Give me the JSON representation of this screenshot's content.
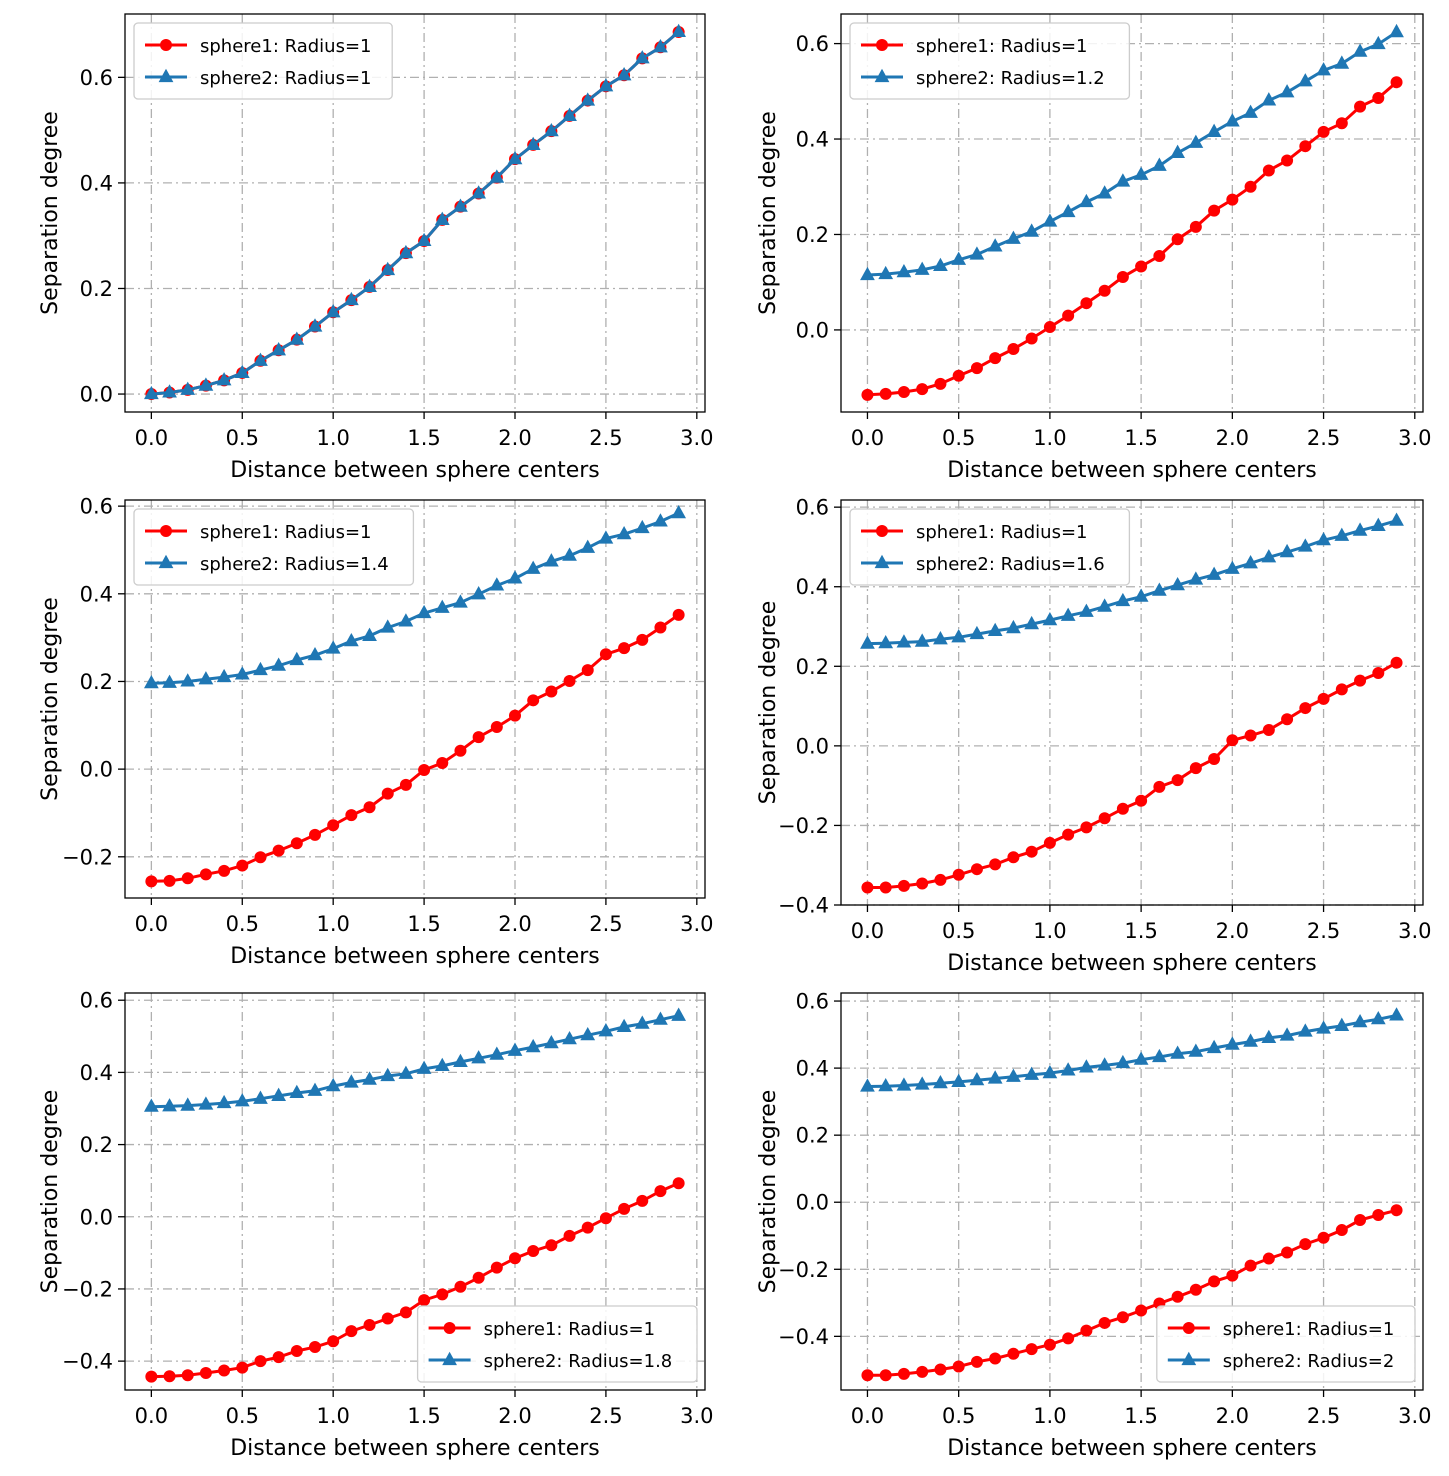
{
  "figure": {
    "background": "#ffffff"
  },
  "colors": {
    "sphere1": "#ff0000",
    "sphere2": "#1f77b4",
    "grid": "#b0b0b0",
    "legend_edge": "#cccccc"
  },
  "chart_data": [
    {
      "type": "line",
      "xlabel": "Distance between sphere centers",
      "ylabel": "Separation degree",
      "xlim": [
        -0.145,
        3.045
      ],
      "ylim": [
        -0.034,
        0.72
      ],
      "xticks": [
        "0.0",
        "0.5",
        "1.0",
        "1.5",
        "2.0",
        "2.5",
        "3.0"
      ],
      "yticks": [
        "0.0",
        "0.2",
        "0.4",
        "0.6"
      ],
      "legend_loc": "upper-left",
      "x": [
        0.0,
        0.1,
        0.2,
        0.3,
        0.4,
        0.5,
        0.6,
        0.7,
        0.8,
        0.9,
        1.0,
        1.1,
        1.2,
        1.3,
        1.4,
        1.5,
        1.6,
        1.7,
        1.8,
        1.9,
        2.0,
        2.1,
        2.2,
        2.3,
        2.4,
        2.5,
        2.6,
        2.7,
        2.8,
        2.9
      ],
      "series": [
        {
          "name": "sphere1: Radius=1",
          "marker": "circle",
          "values": [
            0.0,
            0.003,
            0.008,
            0.016,
            0.026,
            0.04,
            0.063,
            0.083,
            0.103,
            0.128,
            0.155,
            0.178,
            0.203,
            0.235,
            0.267,
            0.29,
            0.33,
            0.355,
            0.38,
            0.41,
            0.445,
            0.472,
            0.498,
            0.527,
            0.556,
            0.583,
            0.604,
            0.636,
            0.657,
            0.686
          ]
        },
        {
          "name": "sphere2: Radius=1",
          "marker": "triangle",
          "values": [
            0.0,
            0.003,
            0.008,
            0.016,
            0.026,
            0.04,
            0.063,
            0.083,
            0.103,
            0.128,
            0.155,
            0.178,
            0.203,
            0.235,
            0.267,
            0.29,
            0.33,
            0.355,
            0.38,
            0.41,
            0.445,
            0.472,
            0.498,
            0.527,
            0.556,
            0.583,
            0.604,
            0.636,
            0.657,
            0.686
          ]
        }
      ]
    },
    {
      "type": "line",
      "xlabel": "Distance between sphere centers",
      "ylabel": "Separation degree",
      "xlim": [
        -0.145,
        3.045
      ],
      "ylim": [
        -0.172,
        0.662
      ],
      "xticks": [
        "0.0",
        "0.5",
        "1.0",
        "1.5",
        "2.0",
        "2.5",
        "3.0"
      ],
      "yticks": [
        "0.0",
        "0.2",
        "0.4",
        "0.6"
      ],
      "legend_loc": "upper-left",
      "x": [
        0.0,
        0.1,
        0.2,
        0.3,
        0.4,
        0.5,
        0.6,
        0.7,
        0.8,
        0.9,
        1.0,
        1.1,
        1.2,
        1.3,
        1.4,
        1.5,
        1.6,
        1.7,
        1.8,
        1.9,
        2.0,
        2.1,
        2.2,
        2.3,
        2.4,
        2.5,
        2.6,
        2.7,
        2.8,
        2.9
      ],
      "series": [
        {
          "name": "sphere1: Radius=1",
          "marker": "circle",
          "values": [
            -0.136,
            -0.134,
            -0.13,
            -0.124,
            -0.113,
            -0.096,
            -0.08,
            -0.059,
            -0.04,
            -0.018,
            0.006,
            0.03,
            0.056,
            0.082,
            0.111,
            0.133,
            0.155,
            0.19,
            0.216,
            0.25,
            0.273,
            0.3,
            0.334,
            0.355,
            0.385,
            0.415,
            0.433,
            0.468,
            0.486,
            0.519
          ]
        },
        {
          "name": "sphere2: Radius=1.2",
          "marker": "triangle",
          "values": [
            0.115,
            0.117,
            0.121,
            0.126,
            0.134,
            0.147,
            0.158,
            0.175,
            0.191,
            0.206,
            0.227,
            0.247,
            0.268,
            0.286,
            0.311,
            0.325,
            0.344,
            0.371,
            0.392,
            0.415,
            0.437,
            0.455,
            0.481,
            0.498,
            0.521,
            0.544,
            0.558,
            0.583,
            0.599,
            0.624
          ]
        }
      ]
    },
    {
      "type": "line",
      "xlabel": "Distance between sphere centers",
      "ylabel": "Separation degree",
      "xlim": [
        -0.145,
        3.045
      ],
      "ylim": [
        -0.294,
        0.614
      ],
      "xticks": [
        "0.0",
        "0.5",
        "1.0",
        "1.5",
        "2.0",
        "2.5",
        "3.0"
      ],
      "yticks": [
        "−0.2",
        "0.0",
        "0.2",
        "0.4",
        "0.6"
      ],
      "legend_loc": "upper-left",
      "x": [
        0.0,
        0.1,
        0.2,
        0.3,
        0.4,
        0.5,
        0.6,
        0.7,
        0.8,
        0.9,
        1.0,
        1.1,
        1.2,
        1.3,
        1.4,
        1.5,
        1.6,
        1.7,
        1.8,
        1.9,
        2.0,
        2.1,
        2.2,
        2.3,
        2.4,
        2.5,
        2.6,
        2.7,
        2.8,
        2.9
      ],
      "series": [
        {
          "name": "sphere1: Radius=1",
          "marker": "circle",
          "values": [
            -0.256,
            -0.255,
            -0.249,
            -0.24,
            -0.232,
            -0.22,
            -0.201,
            -0.186,
            -0.169,
            -0.15,
            -0.128,
            -0.105,
            -0.087,
            -0.056,
            -0.036,
            -0.002,
            0.014,
            0.042,
            0.073,
            0.096,
            0.122,
            0.157,
            0.177,
            0.201,
            0.226,
            0.262,
            0.276,
            0.295,
            0.323,
            0.352
          ]
        },
        {
          "name": "sphere2: Radius=1.4",
          "marker": "triangle",
          "values": [
            0.196,
            0.197,
            0.2,
            0.205,
            0.21,
            0.216,
            0.226,
            0.236,
            0.249,
            0.26,
            0.275,
            0.292,
            0.304,
            0.323,
            0.337,
            0.356,
            0.368,
            0.38,
            0.399,
            0.419,
            0.435,
            0.457,
            0.474,
            0.487,
            0.505,
            0.526,
            0.536,
            0.55,
            0.565,
            0.584
          ]
        }
      ]
    },
    {
      "type": "line",
      "xlabel": "Distance between sphere centers",
      "ylabel": "Separation degree",
      "xlim": [
        -0.145,
        3.045
      ],
      "ylim": [
        -0.4,
        0.618
      ],
      "xticks": [
        "0.0",
        "0.5",
        "1.0",
        "1.5",
        "2.0",
        "2.5",
        "3.0"
      ],
      "yticks": [
        "−0.4",
        "−0.2",
        "0.0",
        "0.2",
        "0.4",
        "0.6"
      ],
      "legend_loc": "upper-left",
      "x": [
        0.0,
        0.1,
        0.2,
        0.3,
        0.4,
        0.5,
        0.6,
        0.7,
        0.8,
        0.9,
        1.0,
        1.1,
        1.2,
        1.3,
        1.4,
        1.5,
        1.6,
        1.7,
        1.8,
        1.9,
        2.0,
        2.1,
        2.2,
        2.3,
        2.4,
        2.5,
        2.6,
        2.7,
        2.8,
        2.9
      ],
      "series": [
        {
          "name": "sphere1: Radius=1",
          "marker": "circle",
          "values": [
            -0.356,
            -0.356,
            -0.352,
            -0.346,
            -0.337,
            -0.324,
            -0.31,
            -0.298,
            -0.28,
            -0.266,
            -0.244,
            -0.223,
            -0.205,
            -0.182,
            -0.158,
            -0.138,
            -0.103,
            -0.086,
            -0.056,
            -0.033,
            0.014,
            0.026,
            0.04,
            0.067,
            0.095,
            0.118,
            0.142,
            0.164,
            0.183,
            0.209
          ]
        },
        {
          "name": "sphere2: Radius=1.6",
          "marker": "triangle",
          "values": [
            0.257,
            0.258,
            0.26,
            0.262,
            0.268,
            0.273,
            0.281,
            0.289,
            0.296,
            0.306,
            0.316,
            0.327,
            0.337,
            0.35,
            0.364,
            0.375,
            0.39,
            0.404,
            0.418,
            0.43,
            0.445,
            0.459,
            0.474,
            0.487,
            0.501,
            0.517,
            0.528,
            0.541,
            0.553,
            0.566
          ]
        }
      ]
    },
    {
      "type": "line",
      "xlabel": "Distance between sphere centers",
      "ylabel": "Separation degree",
      "xlim": [
        -0.145,
        3.045
      ],
      "ylim": [
        -0.48,
        0.62
      ],
      "xticks": [
        "0.0",
        "0.5",
        "1.0",
        "1.5",
        "2.0",
        "2.5",
        "3.0"
      ],
      "yticks": [
        "−0.4",
        "−0.2",
        "0.0",
        "0.2",
        "0.4",
        "0.6"
      ],
      "legend_loc": "lower-right",
      "x": [
        0.0,
        0.1,
        0.2,
        0.3,
        0.4,
        0.5,
        0.6,
        0.7,
        0.8,
        0.9,
        1.0,
        1.1,
        1.2,
        1.3,
        1.4,
        1.5,
        1.6,
        1.7,
        1.8,
        1.9,
        2.0,
        2.1,
        2.2,
        2.3,
        2.4,
        2.5,
        2.6,
        2.7,
        2.8,
        2.9
      ],
      "series": [
        {
          "name": "sphere1: Radius=1",
          "marker": "circle",
          "values": [
            -0.443,
            -0.442,
            -0.439,
            -0.433,
            -0.426,
            -0.418,
            -0.4,
            -0.389,
            -0.372,
            -0.361,
            -0.345,
            -0.317,
            -0.3,
            -0.282,
            -0.265,
            -0.231,
            -0.215,
            -0.194,
            -0.169,
            -0.141,
            -0.115,
            -0.095,
            -0.079,
            -0.053,
            -0.03,
            -0.004,
            0.022,
            0.044,
            0.071,
            0.093
          ]
        },
        {
          "name": "sphere2: Radius=1.8",
          "marker": "triangle",
          "values": [
            0.305,
            0.306,
            0.308,
            0.311,
            0.315,
            0.32,
            0.327,
            0.335,
            0.343,
            0.349,
            0.362,
            0.372,
            0.38,
            0.39,
            0.396,
            0.41,
            0.418,
            0.429,
            0.439,
            0.449,
            0.46,
            0.47,
            0.481,
            0.492,
            0.503,
            0.514,
            0.526,
            0.535,
            0.546,
            0.557
          ]
        }
      ]
    },
    {
      "type": "line",
      "xlabel": "Distance between sphere centers",
      "ylabel": "Separation degree",
      "xlim": [
        -0.145,
        3.045
      ],
      "ylim": [
        -0.56,
        0.624
      ],
      "xticks": [
        "0.0",
        "0.5",
        "1.0",
        "1.5",
        "2.0",
        "2.5",
        "3.0"
      ],
      "yticks": [
        "−0.4",
        "−0.2",
        "0.0",
        "0.2",
        "0.4",
        "0.6"
      ],
      "legend_loc": "lower-right",
      "x": [
        0.0,
        0.1,
        0.2,
        0.3,
        0.4,
        0.5,
        0.6,
        0.7,
        0.8,
        0.9,
        1.0,
        1.1,
        1.2,
        1.3,
        1.4,
        1.5,
        1.6,
        1.7,
        1.8,
        1.9,
        2.0,
        2.1,
        2.2,
        2.3,
        2.4,
        2.5,
        2.6,
        2.7,
        2.8,
        2.9
      ],
      "series": [
        {
          "name": "sphere1: Radius=1",
          "marker": "circle",
          "values": [
            -0.516,
            -0.516,
            -0.512,
            -0.506,
            -0.499,
            -0.49,
            -0.476,
            -0.466,
            -0.452,
            -0.438,
            -0.425,
            -0.406,
            -0.383,
            -0.36,
            -0.343,
            -0.323,
            -0.302,
            -0.282,
            -0.261,
            -0.236,
            -0.219,
            -0.189,
            -0.168,
            -0.15,
            -0.125,
            -0.106,
            -0.083,
            -0.053,
            -0.038,
            -0.024
          ]
        },
        {
          "name": "sphere2: Radius=2",
          "marker": "triangle",
          "values": [
            0.345,
            0.346,
            0.348,
            0.351,
            0.355,
            0.359,
            0.364,
            0.369,
            0.374,
            0.38,
            0.385,
            0.393,
            0.402,
            0.408,
            0.415,
            0.425,
            0.433,
            0.443,
            0.449,
            0.46,
            0.47,
            0.479,
            0.49,
            0.497,
            0.509,
            0.518,
            0.526,
            0.537,
            0.546,
            0.557
          ]
        }
      ]
    }
  ]
}
